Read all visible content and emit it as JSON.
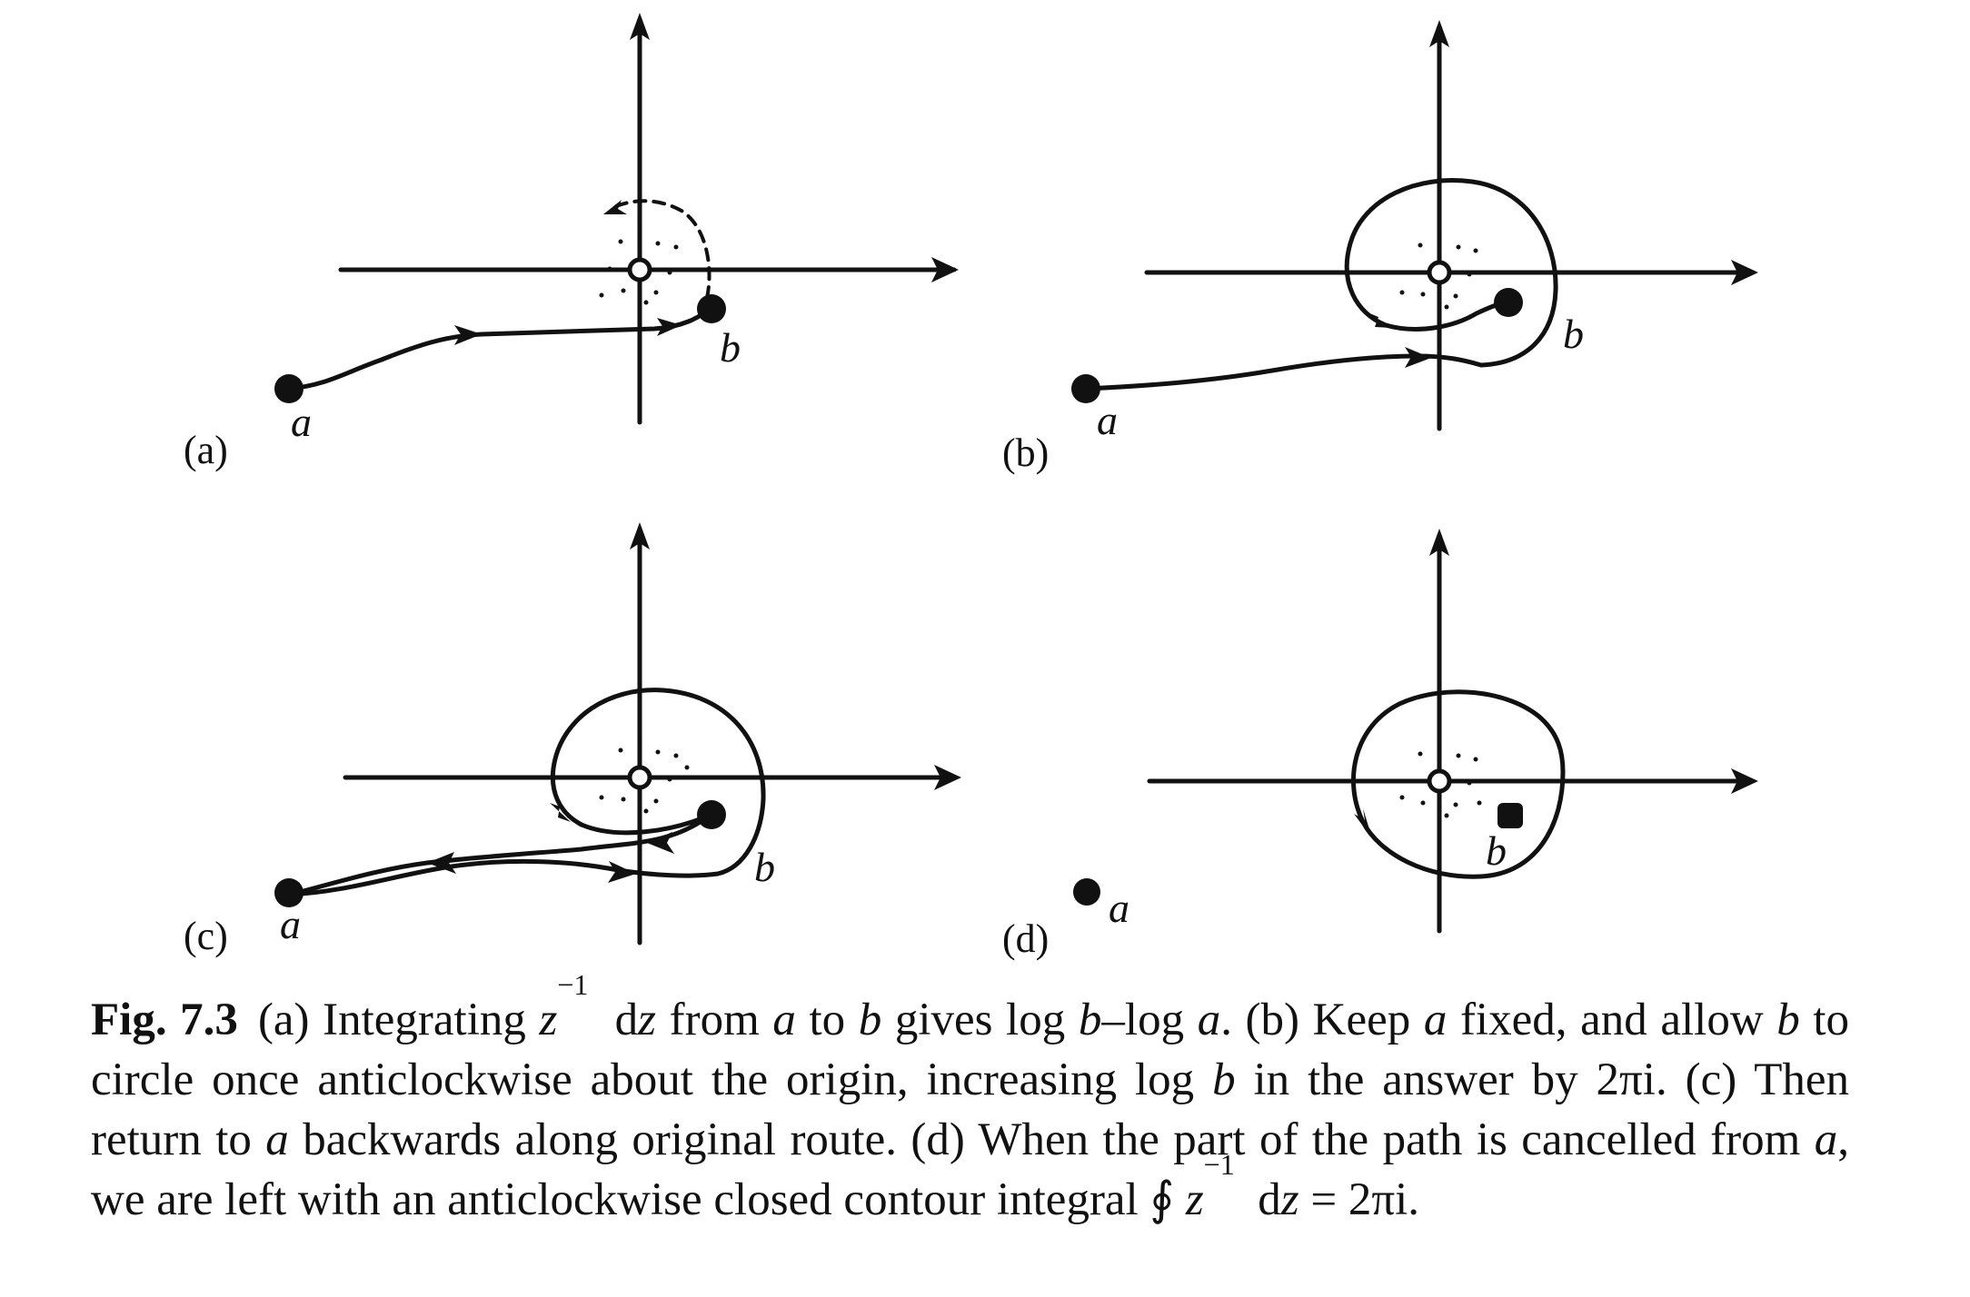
{
  "figure": {
    "panels": [
      {
        "id": "a",
        "label": "(a)",
        "point_a": "a",
        "point_b": "b",
        "description_path": "straight path a to b",
        "winds": 0
      },
      {
        "id": "b",
        "label": "(b)",
        "point_a": "a",
        "point_b": "b",
        "description_path": "b circles origin once",
        "winds": 1
      },
      {
        "id": "c",
        "label": "(c)",
        "point_a": "a",
        "point_b": "b",
        "description_path": "return to a backwards",
        "winds": 1
      },
      {
        "id": "d",
        "label": "(d)",
        "point_a": "a",
        "point_b": "b",
        "description_path": "closed contour",
        "winds": 1
      }
    ]
  },
  "caption": {
    "fig_number": "Fig. 7.3",
    "s1": "(a) Integrating ",
    "z": "z",
    "exp": "−1",
    "dz_d": "d",
    "s2": " from ",
    "a": "a",
    "to": " to ",
    "b": "b",
    "gives": " gives log ",
    "dash_log": "–log ",
    "s3": ". (b) Keep ",
    "s4": " fixed, and allow ",
    "s5": " to circle once anticlockwise about the origin, increasing log ",
    "s6": " in the answer by 2πi. (c) Then return to ",
    "s7": " backwards along original route. (d) When the part of the path is cancelled from ",
    "s8": ", we are left with an anticlockwise closed contour integral ∮ ",
    "s9": " = 2πi."
  }
}
